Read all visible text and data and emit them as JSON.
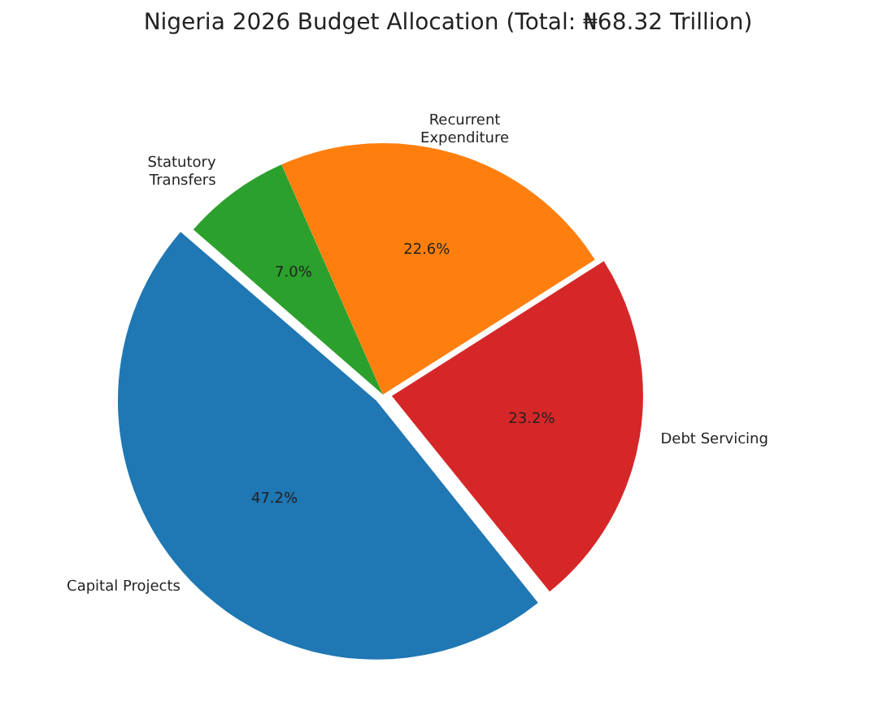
{
  "chart_data": {
    "type": "pie",
    "title": "Nigeria 2026 Budget Allocation (Total: ₦68.32 Trillion)",
    "categories": [
      "Statutory Transfers",
      "Recurrent Expenditure",
      "Debt Servicing",
      "Capital Projects"
    ],
    "values": [
      7.0,
      22.6,
      23.2,
      47.2
    ],
    "colors": [
      "#2ca02c",
      "#ff7f0e",
      "#d62728",
      "#1f77b4"
    ],
    "value_labels": [
      "7.0%",
      "22.6%",
      "23.2%",
      "47.2%"
    ]
  }
}
